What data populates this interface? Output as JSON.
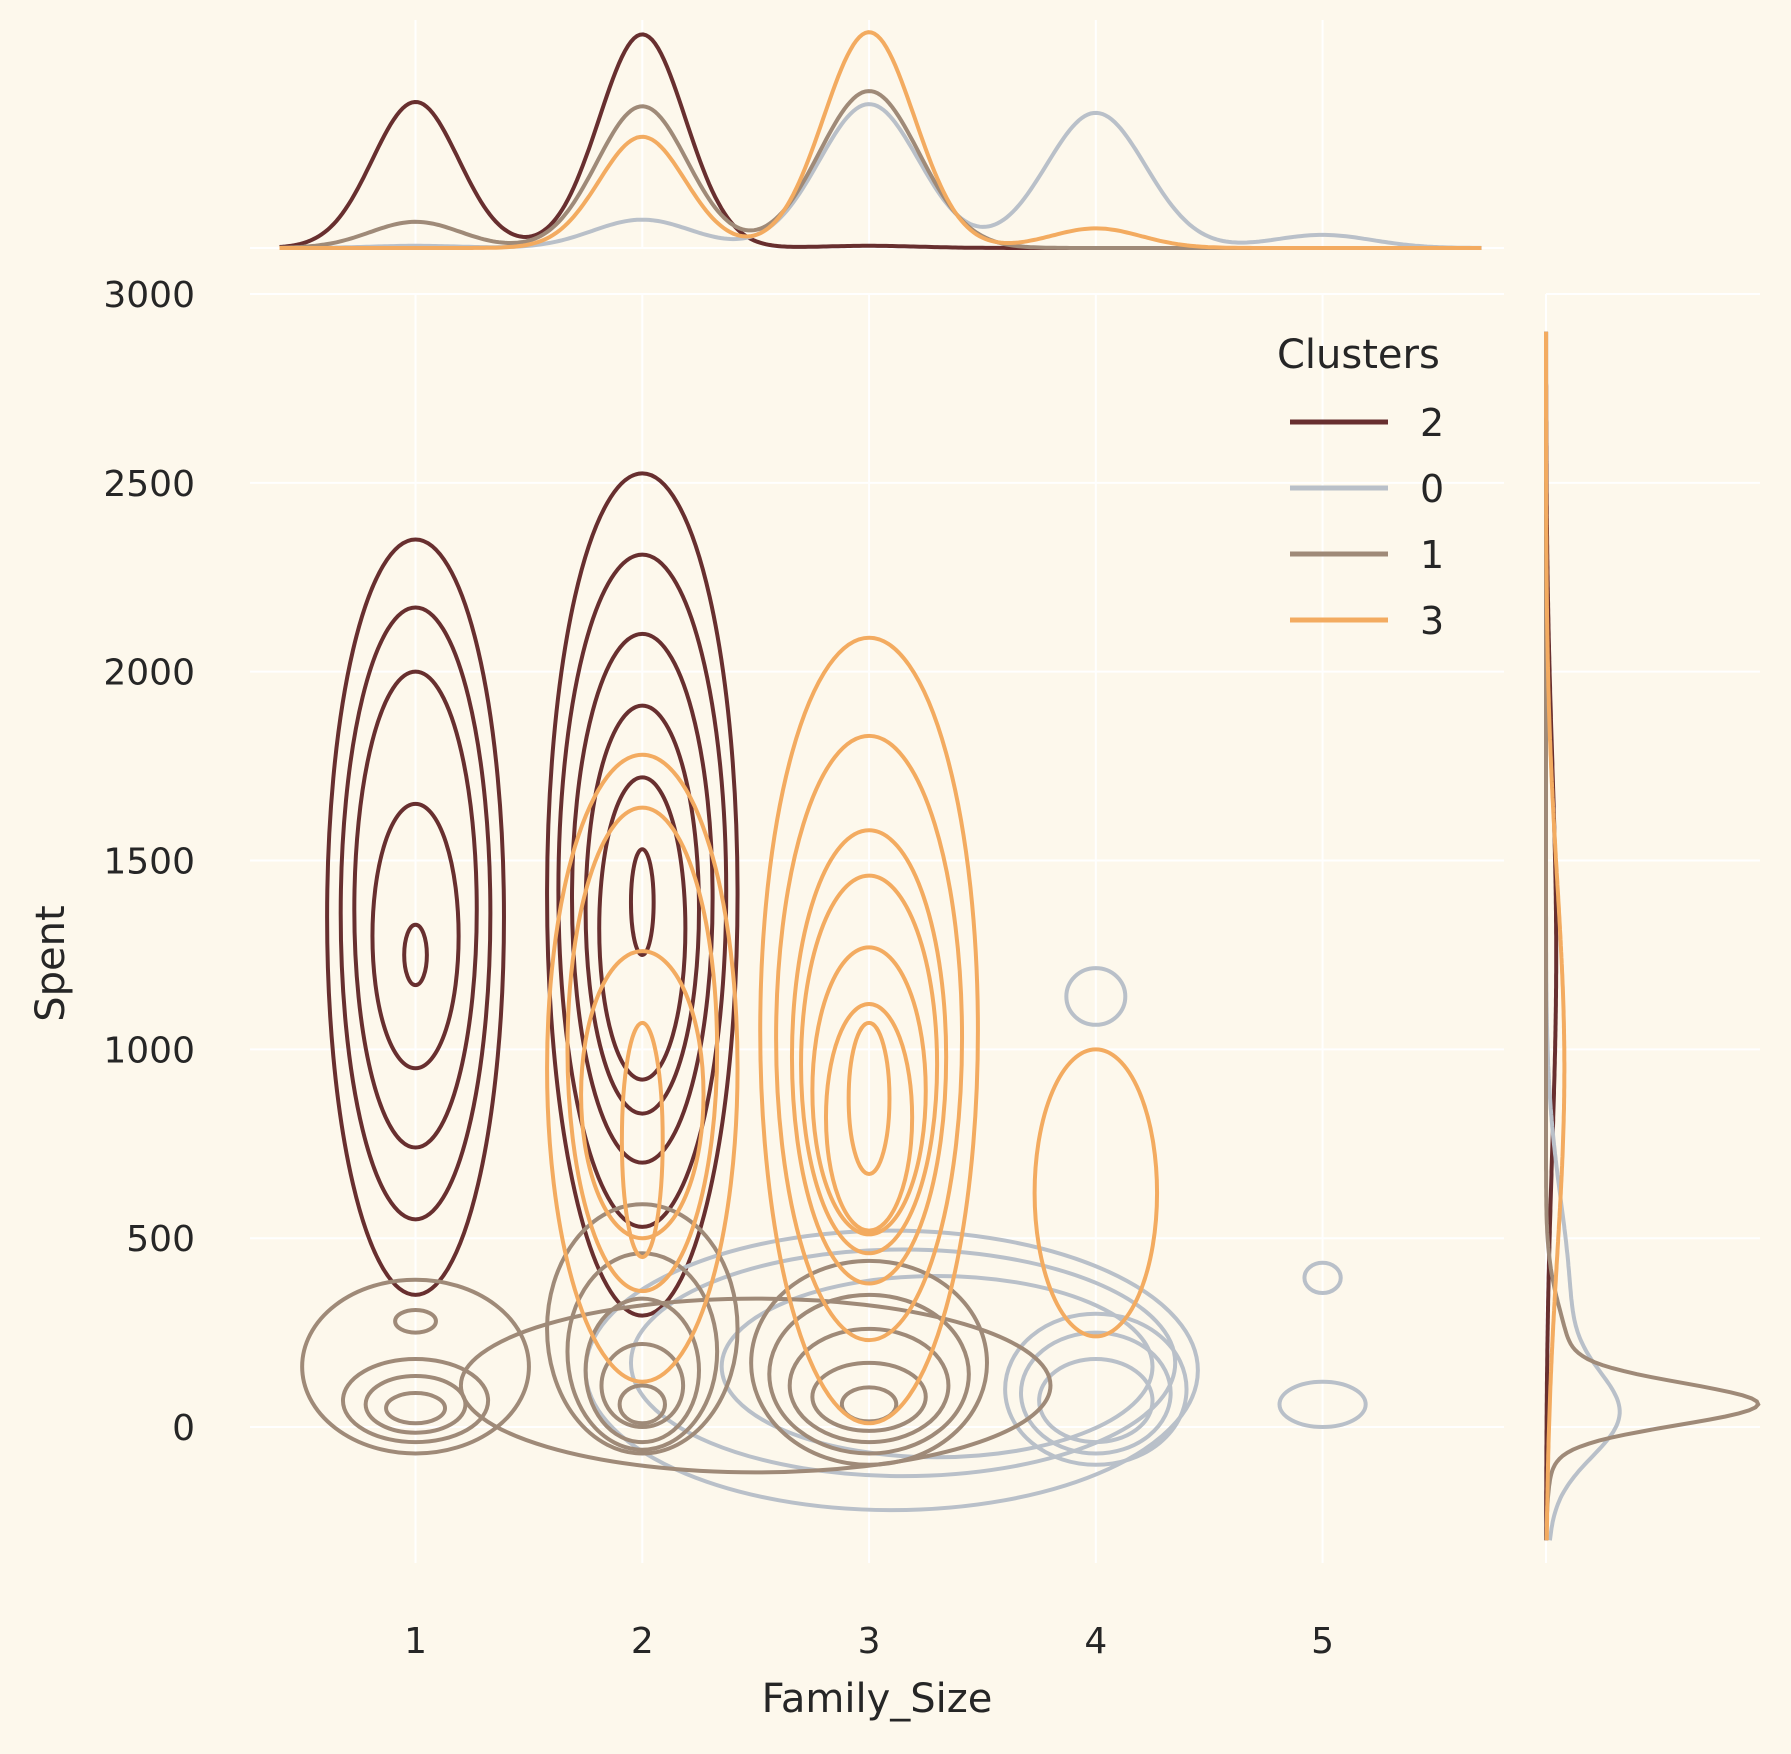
{
  "chart_data": {
    "type": "kde-contour-jointplot",
    "xlabel": "Family_Size",
    "ylabel": "Spent",
    "x_ticks": [
      1,
      2,
      3,
      4,
      5
    ],
    "y_ticks": [
      0,
      500,
      1000,
      1500,
      2000,
      2500,
      3000
    ],
    "x_range": [
      0.27,
      5.8
    ],
    "y_range": [
      -360,
      3000
    ],
    "grid": true,
    "legend": {
      "title": "Clusters",
      "placement": "top-right",
      "entries": [
        {
          "label": "2",
          "color": "#682f2f"
        },
        {
          "label": "0",
          "color": "#b9c0c9"
        },
        {
          "label": "1",
          "color": "#9f8a78"
        },
        {
          "label": "3",
          "color": "#f3ab60"
        }
      ]
    },
    "series": [
      {
        "name": "2",
        "color": "#682f2f",
        "contours": [
          {
            "cx": 1,
            "cy": 1350,
            "rx": 0.39,
            "ry": 1000
          },
          {
            "cx": 1,
            "cy": 1360,
            "rx": 0.33,
            "ry": 810
          },
          {
            "cx": 1,
            "cy": 1370,
            "rx": 0.27,
            "ry": 630
          },
          {
            "cx": 1,
            "cy": 1300,
            "rx": 0.19,
            "ry": 350
          },
          {
            "cx": 1,
            "cy": 1250,
            "rx": 0.05,
            "ry": 80
          },
          {
            "cx": 2,
            "cy": 1410,
            "rx": 0.42,
            "ry": 1115
          },
          {
            "cx": 2,
            "cy": 1420,
            "rx": 0.37,
            "ry": 890
          },
          {
            "cx": 2,
            "cy": 1400,
            "rx": 0.31,
            "ry": 700
          },
          {
            "cx": 2,
            "cy": 1370,
            "rx": 0.25,
            "ry": 540
          },
          {
            "cx": 2,
            "cy": 1320,
            "rx": 0.19,
            "ry": 400
          },
          {
            "cx": 2,
            "cy": 1390,
            "rx": 0.05,
            "ry": 140
          }
        ],
        "x_marginal": [
          {
            "mu": 1,
            "sigma": 0.19,
            "h": 0.67
          },
          {
            "mu": 2,
            "sigma": 0.19,
            "h": 0.98
          },
          {
            "mu": 3,
            "sigma": 0.22,
            "h": 0.01
          }
        ],
        "y_marginal": [
          {
            "mu": 1250,
            "sigma": 520,
            "h": 0.05
          }
        ]
      },
      {
        "name": "0",
        "color": "#b9c0c9",
        "contours": [
          {
            "cx": 3.1,
            "cy": 150,
            "rx": 1.35,
            "ry": 370
          },
          {
            "cx": 3.15,
            "cy": 170,
            "rx": 1.2,
            "ry": 300
          },
          {
            "cx": 3.3,
            "cy": 160,
            "rx": 0.95,
            "ry": 240
          },
          {
            "cx": 4,
            "cy": 100,
            "rx": 0.4,
            "ry": 200
          },
          {
            "cx": 4,
            "cy": 90,
            "rx": 0.33,
            "ry": 160
          },
          {
            "cx": 4,
            "cy": 70,
            "rx": 0.25,
            "ry": 110
          },
          {
            "cx": 4,
            "cy": 1140,
            "rx": 0.13,
            "ry": 75
          },
          {
            "cx": 5,
            "cy": 60,
            "rx": 0.19,
            "ry": 60
          },
          {
            "cx": 5,
            "cy": 395,
            "rx": 0.08,
            "ry": 40
          }
        ],
        "x_marginal": [
          {
            "mu": 1,
            "sigma": 0.2,
            "h": 0.01
          },
          {
            "mu": 2,
            "sigma": 0.22,
            "h": 0.13
          },
          {
            "mu": 3,
            "sigma": 0.22,
            "h": 0.66
          },
          {
            "mu": 4,
            "sigma": 0.22,
            "h": 0.62
          },
          {
            "mu": 5,
            "sigma": 0.22,
            "h": 0.06
          }
        ],
        "y_marginal": [
          {
            "mu": 30,
            "sigma": 110,
            "h": 0.28
          },
          {
            "mu": 300,
            "sigma": 300,
            "h": 0.12
          }
        ]
      },
      {
        "name": "1",
        "color": "#9f8a78",
        "contours": [
          {
            "cx": 1,
            "cy": 160,
            "rx": 0.5,
            "ry": 230
          },
          {
            "cx": 1,
            "cy": 280,
            "rx": 0.09,
            "ry": 30
          },
          {
            "cx": 1,
            "cy": 70,
            "rx": 0.32,
            "ry": 110
          },
          {
            "cx": 1,
            "cy": 60,
            "rx": 0.22,
            "ry": 75
          },
          {
            "cx": 1,
            "cy": 50,
            "rx": 0.13,
            "ry": 40
          },
          {
            "cx": 2.5,
            "cy": 110,
            "rx": 1.3,
            "ry": 230
          },
          {
            "cx": 2,
            "cy": 260,
            "rx": 0.42,
            "ry": 330
          },
          {
            "cx": 2,
            "cy": 200,
            "rx": 0.33,
            "ry": 260
          },
          {
            "cx": 2,
            "cy": 150,
            "rx": 0.25,
            "ry": 190
          },
          {
            "cx": 2,
            "cy": 110,
            "rx": 0.18,
            "ry": 110
          },
          {
            "cx": 2,
            "cy": 60,
            "rx": 0.1,
            "ry": 50
          },
          {
            "cx": 3,
            "cy": 170,
            "rx": 0.52,
            "ry": 270
          },
          {
            "cx": 3,
            "cy": 140,
            "rx": 0.44,
            "ry": 210
          },
          {
            "cx": 3,
            "cy": 110,
            "rx": 0.35,
            "ry": 150
          },
          {
            "cx": 3,
            "cy": 80,
            "rx": 0.25,
            "ry": 90
          },
          {
            "cx": 3,
            "cy": 60,
            "rx": 0.12,
            "ry": 45
          }
        ],
        "x_marginal": [
          {
            "mu": 1,
            "sigma": 0.2,
            "h": 0.12
          },
          {
            "mu": 2,
            "sigma": 0.2,
            "h": 0.65
          },
          {
            "mu": 3,
            "sigma": 0.22,
            "h": 0.72
          }
        ],
        "y_marginal": [
          {
            "mu": 60,
            "sigma": 55,
            "h": 0.94
          },
          {
            "mu": 150,
            "sigma": 150,
            "h": 0.12
          }
        ]
      },
      {
        "name": "3",
        "color": "#f3ab60",
        "contours": [
          {
            "cx": 2,
            "cy": 950,
            "rx": 0.42,
            "ry": 830
          },
          {
            "cx": 2,
            "cy": 1000,
            "rx": 0.33,
            "ry": 640
          },
          {
            "cx": 2,
            "cy": 880,
            "rx": 0.27,
            "ry": 380
          },
          {
            "cx": 2,
            "cy": 760,
            "rx": 0.09,
            "ry": 310
          },
          {
            "cx": 3,
            "cy": 1050,
            "rx": 0.48,
            "ry": 1040
          },
          {
            "cx": 3,
            "cy": 1030,
            "rx": 0.41,
            "ry": 800
          },
          {
            "cx": 3,
            "cy": 980,
            "rx": 0.34,
            "ry": 600
          },
          {
            "cx": 3,
            "cy": 960,
            "rx": 0.3,
            "ry": 500
          },
          {
            "cx": 3,
            "cy": 890,
            "rx": 0.25,
            "ry": 380
          },
          {
            "cx": 3,
            "cy": 820,
            "rx": 0.19,
            "ry": 300
          },
          {
            "cx": 3,
            "cy": 870,
            "rx": 0.09,
            "ry": 200
          },
          {
            "cx": 4,
            "cy": 620,
            "rx": 0.27,
            "ry": 380
          }
        ],
        "x_marginal": [
          {
            "mu": 2,
            "sigma": 0.19,
            "h": 0.51
          },
          {
            "mu": 3,
            "sigma": 0.2,
            "h": 0.99
          },
          {
            "mu": 4,
            "sigma": 0.2,
            "h": 0.09
          }
        ],
        "y_marginal": [
          {
            "mu": 950,
            "sigma": 500,
            "h": 0.09
          }
        ]
      }
    ]
  }
}
